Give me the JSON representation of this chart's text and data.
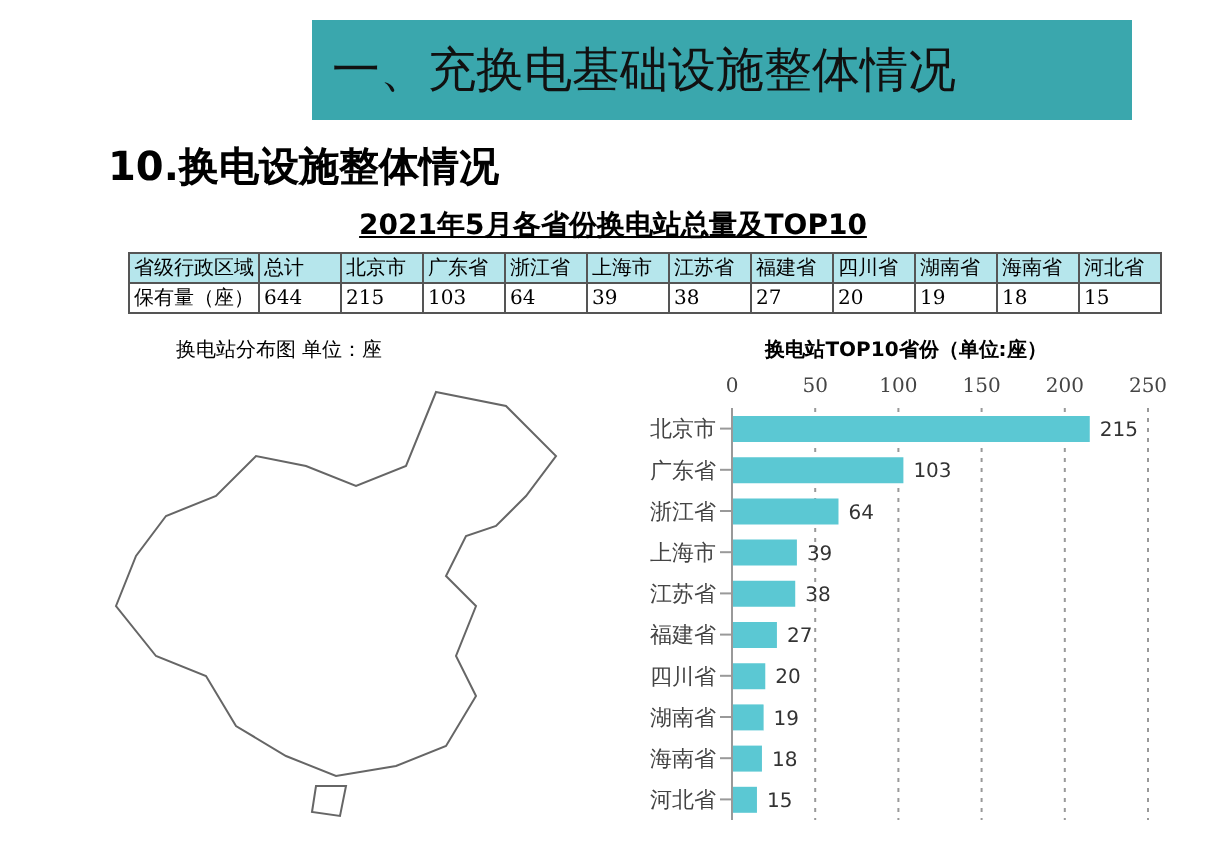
{
  "chart_data": {
    "type": "bar",
    "orientation": "horizontal",
    "title": "换电站TOP10省份（单位:座）",
    "annotations": [
      "一、充换电基础设施整体情况",
      "10.换电设施整体情况",
      "2021年5月各省份换电站总量及TOP10",
      "省级行政区域",
      "总计",
      "保有量（座）",
      "换电站分布图 单位：座",
      "644",
      "215",
      "103",
      "64",
      "39",
      "38",
      "27",
      "20",
      "19",
      "18",
      "15"
    ],
    "categories": [
      "北京市",
      "广东省",
      "浙江省",
      "上海市",
      "江苏省",
      "福建省",
      "四川省",
      "湖南省",
      "海南省",
      "河北省"
    ],
    "values": [
      215,
      103,
      64,
      39,
      38,
      27,
      20,
      19,
      18,
      15
    ],
    "color": "#5bc8d3",
    "xlim": [
      0,
      250
    ],
    "xticks": [
      0,
      50,
      100,
      150,
      200,
      250
    ],
    "grid": "x",
    "data_labels": true
  }
}
